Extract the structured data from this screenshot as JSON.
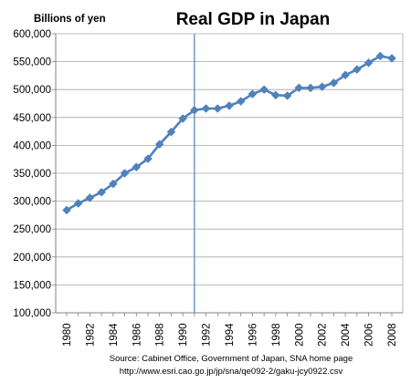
{
  "chart_data": {
    "type": "line",
    "title": "Real GDP in Japan",
    "unit_label": "Billions of yen",
    "xlabel": "",
    "ylabel": "",
    "xlim": [
      1980,
      2008
    ],
    "ylim": [
      100000,
      600000
    ],
    "y_ticks": [
      100000,
      150000,
      200000,
      250000,
      300000,
      350000,
      400000,
      450000,
      500000,
      550000,
      600000
    ],
    "y_tick_labels": [
      "100,000",
      "150,000",
      "200,000",
      "250,000",
      "300,000",
      "350,000",
      "400,000",
      "450,000",
      "500,000",
      "550,000",
      "600,000"
    ],
    "x_ticks": [
      1980,
      1982,
      1984,
      1986,
      1988,
      1990,
      1992,
      1994,
      1996,
      1998,
      2000,
      2002,
      2004,
      2006,
      2008
    ],
    "x_tick_labels": [
      "1980",
      "1982",
      "1984",
      "1986",
      "1988",
      "1990",
      "1992",
      "1994",
      "1996",
      "1998",
      "2000",
      "2002",
      "2004",
      "2006",
      "2008"
    ],
    "grid": "horizontal",
    "marker": "diamond",
    "vertical_reference_x": 1991,
    "series": [
      {
        "color": "#4f81bd",
        "x": [
          1980,
          1981,
          1982,
          1983,
          1984,
          1985,
          1986,
          1987,
          1988,
          1989,
          1990,
          1991,
          1992,
          1993,
          1994,
          1995,
          1996,
          1997,
          1998,
          1999,
          2000,
          2001,
          2002,
          2003,
          2004,
          2005,
          2006,
          2007,
          2008
        ],
        "values": [
          284000,
          296000,
          306000,
          316000,
          331000,
          350000,
          361000,
          376000,
          402000,
          424000,
          448000,
          463000,
          466000,
          466000,
          471000,
          479000,
          492000,
          500000,
          490000,
          489000,
          503000,
          503000,
          505000,
          512000,
          526000,
          536000,
          548000,
          560000,
          556000
        ]
      }
    ],
    "source_lines": [
      "Source: Cabinet Office, Government of Japan, SNA home page",
      "http://www.esri.cao.go.jp/jp/sna/qe092-2/gaku-jcy0922.csv"
    ]
  }
}
